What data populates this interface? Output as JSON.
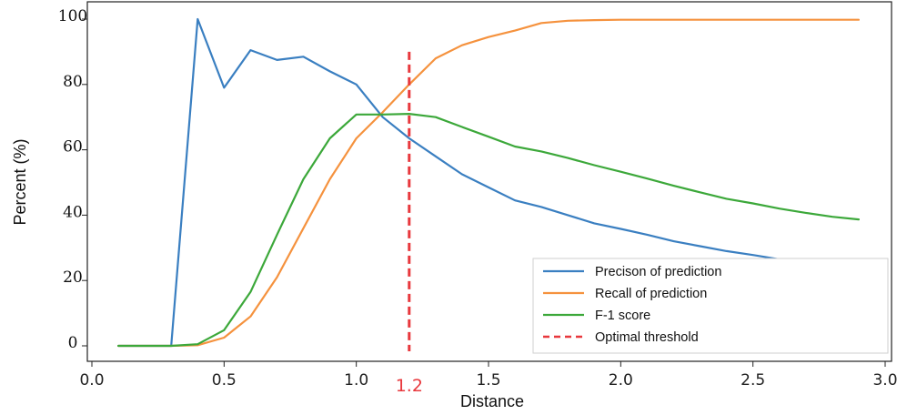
{
  "chart_data": {
    "type": "line",
    "xlabel": "Distance",
    "ylabel": "Percent (%)",
    "xlim": [
      0.0,
      3.0
    ],
    "ylim": [
      0,
      100
    ],
    "xticks": [
      "0.0",
      "0.5",
      "1.0",
      "1.5",
      "2.0",
      "2.5",
      "3.0"
    ],
    "yticks": [
      "0",
      "20",
      "40",
      "60",
      "80",
      "100"
    ],
    "threshold": {
      "x": 1.2,
      "label": "1.2",
      "color": "#e8383d",
      "y_top": 90
    },
    "legend_position": "lower-right",
    "grid": false,
    "series": [
      {
        "name": "Precison of prediction",
        "color": "#3a7fc1",
        "x": [
          0.1,
          0.2,
          0.3,
          0.4,
          0.5,
          0.6,
          0.7,
          0.8,
          0.9,
          1.0,
          1.1,
          1.2,
          1.3,
          1.4,
          1.5,
          1.6,
          1.7,
          1.8,
          1.9,
          2.0,
          2.1,
          2.2,
          2.3,
          2.4,
          2.5,
          2.6,
          2.7,
          2.8,
          2.9
        ],
        "values": [
          0,
          0,
          0,
          100,
          79,
          90.5,
          87.5,
          88.5,
          84,
          80,
          70,
          63.5,
          58,
          52.5,
          48.5,
          44.5,
          42.5,
          40,
          37.5,
          35.8,
          34,
          32,
          30.5,
          29,
          27.8,
          26.5,
          25.5,
          24.5,
          24
        ]
      },
      {
        "name": "Recall of prediction",
        "color": "#f5923e",
        "x": [
          0.1,
          0.2,
          0.3,
          0.4,
          0.5,
          0.6,
          0.7,
          0.8,
          0.9,
          1.0,
          1.1,
          1.2,
          1.3,
          1.4,
          1.5,
          1.6,
          1.7,
          1.8,
          1.9,
          2.0,
          2.1,
          2.2,
          2.3,
          2.4,
          2.5,
          2.6,
          2.7,
          2.8,
          2.9
        ],
        "values": [
          0,
          0,
          0,
          0.2,
          2.5,
          9,
          21,
          36,
          51,
          63.5,
          71.5,
          80,
          88,
          92,
          94.5,
          96.5,
          98.8,
          99.5,
          99.7,
          99.8,
          99.8,
          99.8,
          99.8,
          99.8,
          99.8,
          99.8,
          99.8,
          99.8,
          99.8
        ]
      },
      {
        "name": "F-1 score",
        "color": "#3ca83a",
        "x": [
          0.1,
          0.2,
          0.3,
          0.4,
          0.5,
          0.6,
          0.7,
          0.8,
          0.9,
          1.0,
          1.1,
          1.2,
          1.3,
          1.4,
          1.5,
          1.6,
          1.7,
          1.8,
          1.9,
          2.0,
          2.1,
          2.2,
          2.3,
          2.4,
          2.5,
          2.6,
          2.7,
          2.8,
          2.9
        ],
        "values": [
          0,
          0,
          0,
          0.5,
          4.8,
          16.5,
          34,
          51,
          63.5,
          70.8,
          70.8,
          71,
          70,
          67,
          64,
          61,
          59.5,
          57.5,
          55.3,
          53.3,
          51.2,
          49,
          47,
          45,
          43.6,
          42,
          40.7,
          39.5,
          38.7
        ]
      },
      {
        "name": "Optimal threshold",
        "color": "#e8383d",
        "dashed": true
      }
    ]
  }
}
